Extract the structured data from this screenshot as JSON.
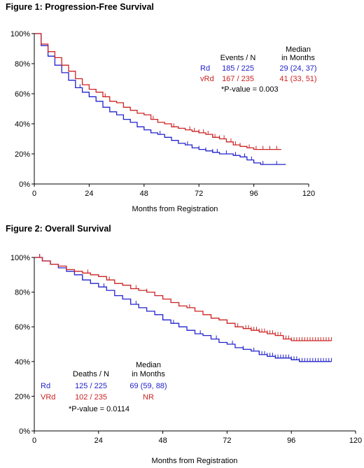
{
  "chart_data": [
    {
      "type": "line",
      "title": "Figure 1: Progression-Free Survival",
      "xlabel": "Months from Registration",
      "ylabel": "",
      "xlim": [
        0,
        120
      ],
      "ylim": [
        0,
        100
      ],
      "x_ticks": [
        "0",
        "24",
        "48",
        "72",
        "96",
        "120"
      ],
      "y_ticks": [
        "0%",
        "20%",
        "40%",
        "60%",
        "80%",
        "100%"
      ],
      "grid": false,
      "legend_position": "top-right",
      "legend": {
        "col_headers": [
          "Events / N",
          "Median",
          "in Months"
        ],
        "rows": [
          {
            "name": "Rd",
            "events": "185 / 225",
            "median": "29 (24, 37)",
            "color": "#2222cc"
          },
          {
            "name": "vRd",
            "events": "167 / 235",
            "median": "41 (33, 51)",
            "color": "#cc2222"
          }
        ],
        "note": "*P-value = 0.003"
      },
      "series": [
        {
          "name": "Rd",
          "color": "#2222cc",
          "x": [
            0,
            3,
            6,
            9,
            12,
            15,
            18,
            21,
            24,
            27,
            30,
            33,
            36,
            39,
            42,
            45,
            48,
            51,
            54,
            57,
            60,
            63,
            66,
            69,
            72,
            75,
            78,
            81,
            84,
            87,
            90,
            93,
            96,
            99,
            102,
            105,
            108,
            110
          ],
          "y": [
            100,
            92,
            85,
            79,
            74,
            69,
            64,
            61,
            58,
            55,
            51,
            48,
            46,
            43,
            41,
            38,
            36,
            34,
            33,
            31,
            29,
            27,
            26,
            24,
            23,
            22,
            21,
            20,
            20,
            19,
            18,
            16,
            14,
            13,
            13,
            13,
            13,
            13
          ],
          "censor_x": [
            20,
            24,
            55,
            67,
            72,
            75,
            78,
            80,
            84,
            88,
            92,
            95,
            100,
            106
          ]
        },
        {
          "name": "vRd",
          "color": "#cc2222",
          "x": [
            0,
            3,
            6,
            9,
            12,
            15,
            18,
            21,
            24,
            27,
            30,
            33,
            36,
            39,
            42,
            45,
            48,
            51,
            54,
            57,
            60,
            63,
            66,
            69,
            72,
            75,
            78,
            81,
            84,
            87,
            90,
            93,
            96,
            99,
            102,
            105,
            108
          ],
          "y": [
            100,
            93,
            88,
            84,
            79,
            75,
            70,
            66,
            63,
            61,
            58,
            55,
            54,
            51,
            49,
            47,
            46,
            43,
            41,
            40,
            38,
            37,
            36,
            35,
            34,
            33,
            31,
            30,
            28,
            26,
            25,
            24,
            23,
            23,
            23,
            23,
            23
          ],
          "censor_x": [
            31,
            52,
            61,
            68,
            70,
            72,
            74,
            76,
            78,
            79,
            81,
            83,
            86,
            88,
            90,
            94,
            97,
            100,
            103,
            106
          ]
        }
      ]
    },
    {
      "type": "line",
      "title": "Figure 2: Overall Survival",
      "xlabel": "Months from Registration",
      "ylabel": "",
      "xlim": [
        0,
        120
      ],
      "ylim": [
        0,
        100
      ],
      "x_ticks": [
        "0",
        "24",
        "48",
        "72",
        "96",
        "120"
      ],
      "y_ticks": [
        "0%",
        "20%",
        "40%",
        "60%",
        "80%",
        "100%"
      ],
      "grid": false,
      "legend_position": "bottom-left",
      "legend": {
        "col_headers": [
          "Deaths / N",
          "Median",
          "in Months"
        ],
        "rows": [
          {
            "name": "Rd",
            "events": "125 / 225",
            "median": "69 (59, 88)",
            "color": "#2222cc"
          },
          {
            "name": "VRd",
            "events": "102 / 235",
            "median": "NR",
            "color": "#cc2222"
          }
        ],
        "note": "*P-value = 0.0114"
      },
      "series": [
        {
          "name": "Rd",
          "color": "#2222cc",
          "x": [
            0,
            3,
            6,
            9,
            12,
            15,
            18,
            21,
            24,
            27,
            30,
            33,
            36,
            39,
            42,
            45,
            48,
            51,
            54,
            57,
            60,
            63,
            66,
            69,
            72,
            75,
            78,
            81,
            84,
            87,
            90,
            93,
            96,
            99,
            102,
            105,
            108,
            111
          ],
          "y": [
            100,
            98,
            96,
            94,
            92,
            90,
            87,
            85,
            83,
            81,
            78,
            76,
            73,
            71,
            69,
            67,
            64,
            62,
            60,
            58,
            56,
            55,
            53,
            51,
            50,
            48,
            47,
            46,
            44,
            43,
            42,
            42,
            41,
            40,
            40,
            40,
            40,
            40
          ],
          "censor_x": [
            2,
            18,
            26,
            38,
            48,
            52,
            62,
            68,
            74,
            78,
            82,
            84,
            85,
            86,
            87,
            88,
            89,
            90,
            91,
            92,
            93,
            94,
            95,
            96,
            97,
            98,
            99,
            100,
            101,
            102,
            103,
            104,
            105,
            106,
            107,
            108,
            109,
            110,
            111
          ]
        },
        {
          "name": "VRd",
          "color": "#cc2222",
          "x": [
            0,
            3,
            6,
            9,
            12,
            15,
            18,
            21,
            24,
            27,
            30,
            33,
            36,
            39,
            42,
            45,
            48,
            51,
            54,
            57,
            60,
            63,
            66,
            69,
            72,
            75,
            78,
            81,
            84,
            87,
            90,
            93,
            96,
            99,
            102,
            105,
            108,
            111
          ],
          "y": [
            100,
            98,
            96,
            95,
            93,
            92,
            91,
            90,
            89,
            87,
            85,
            84,
            82,
            81,
            80,
            78,
            76,
            74,
            72,
            71,
            69,
            67,
            65,
            64,
            62,
            60,
            59,
            58,
            57,
            56,
            55,
            53,
            52,
            52,
            52,
            52,
            52,
            52
          ],
          "censor_x": [
            2,
            20,
            28,
            38,
            42,
            48,
            58,
            66,
            72,
            76,
            79,
            80,
            81,
            82,
            83,
            84,
            85,
            86,
            87,
            88,
            89,
            90,
            91,
            92,
            93,
            94,
            95,
            96,
            97,
            98,
            99,
            100,
            101,
            102,
            103,
            104,
            105,
            106,
            107,
            108,
            109,
            110,
            111
          ]
        }
      ]
    }
  ]
}
